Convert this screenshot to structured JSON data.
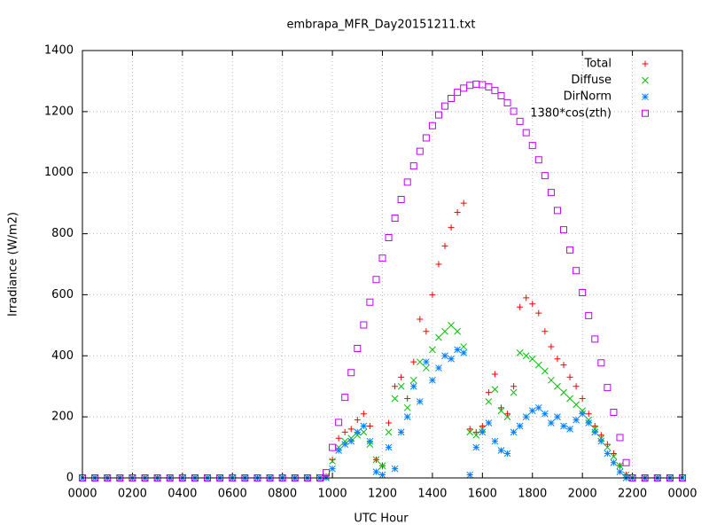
{
  "chart_data": {
    "type": "scatter",
    "title": "embrapa_MFR_Day20151211.txt",
    "xlabel": "UTC Hour",
    "ylabel": "Irradiance (W/m2)",
    "xlim": [
      0,
      24
    ],
    "ylim": [
      0,
      1400
    ],
    "xticks": [
      {
        "value": 0,
        "label": "0000"
      },
      {
        "value": 2,
        "label": "0200"
      },
      {
        "value": 4,
        "label": "0400"
      },
      {
        "value": 6,
        "label": "0600"
      },
      {
        "value": 8,
        "label": "0800"
      },
      {
        "value": 10,
        "label": "1000"
      },
      {
        "value": 12,
        "label": "1200"
      },
      {
        "value": 14,
        "label": "1400"
      },
      {
        "value": 16,
        "label": "1600"
      },
      {
        "value": 18,
        "label": "1800"
      },
      {
        "value": 20,
        "label": "2000"
      },
      {
        "value": 22,
        "label": "2200"
      },
      {
        "value": 24,
        "label": "0000"
      }
    ],
    "yticks": [
      0,
      200,
      400,
      600,
      800,
      1000,
      1200,
      1400
    ],
    "grid": true,
    "legend": "top-right",
    "x": [
      0,
      0.5,
      1,
      1.5,
      2,
      2.5,
      3,
      3.5,
      4,
      4.5,
      5,
      5.5,
      6,
      6.5,
      7,
      7.5,
      8,
      8.5,
      9,
      9.5,
      9.75,
      10,
      10.25,
      10.5,
      10.75,
      11,
      11.25,
      11.5,
      11.75,
      12,
      12.25,
      12.5,
      12.75,
      13,
      13.25,
      13.5,
      13.75,
      14,
      14.25,
      14.5,
      14.75,
      15,
      15.25,
      15.5,
      15.75,
      16,
      16.25,
      16.5,
      16.75,
      17,
      17.25,
      17.5,
      17.75,
      18,
      18.25,
      18.5,
      18.75,
      19,
      19.25,
      19.5,
      19.75,
      20,
      20.25,
      20.5,
      20.75,
      21,
      21.25,
      21.5,
      21.75,
      22,
      22.5,
      23,
      23.5,
      24
    ],
    "series": [
      {
        "name": "Total",
        "color": "#ff0000",
        "marker": "plus",
        "values": [
          0,
          0,
          0,
          0,
          0,
          0,
          0,
          0,
          0,
          0,
          0,
          0,
          0,
          0,
          0,
          0,
          0,
          0,
          0,
          0,
          5,
          60,
          130,
          150,
          160,
          190,
          210,
          170,
          60,
          40,
          180,
          300,
          330,
          260,
          380,
          520,
          480,
          600,
          700,
          760,
          820,
          870,
          900,
          160,
          150,
          170,
          280,
          340,
          230,
          210,
          300,
          560,
          590,
          570,
          540,
          480,
          430,
          390,
          370,
          330,
          300,
          260,
          210,
          170,
          140,
          110,
          80,
          40,
          10,
          0,
          0,
          0,
          0,
          0
        ]
      },
      {
        "name": "Diffuse",
        "color": "#00c000",
        "marker": "cross",
        "values": [
          0,
          0,
          0,
          0,
          0,
          0,
          0,
          0,
          0,
          0,
          0,
          0,
          0,
          0,
          0,
          0,
          0,
          0,
          0,
          0,
          5,
          55,
          100,
          120,
          130,
          140,
          150,
          110,
          60,
          40,
          150,
          260,
          300,
          230,
          320,
          380,
          360,
          420,
          460,
          480,
          500,
          480,
          430,
          150,
          140,
          160,
          250,
          290,
          220,
          200,
          280,
          410,
          400,
          390,
          370,
          350,
          320,
          300,
          280,
          260,
          240,
          220,
          190,
          160,
          130,
          100,
          70,
          40,
          10,
          0,
          0,
          0,
          0,
          0
        ]
      },
      {
        "name": "DirNorm",
        "color": "#0080ff",
        "marker": "star",
        "values": [
          0,
          0,
          0,
          0,
          0,
          0,
          0,
          0,
          0,
          0,
          0,
          0,
          0,
          0,
          0,
          0,
          0,
          0,
          0,
          0,
          0,
          30,
          90,
          110,
          120,
          150,
          170,
          120,
          20,
          10,
          100,
          30,
          150,
          200,
          300,
          250,
          380,
          320,
          360,
          400,
          390,
          420,
          410,
          10,
          100,
          150,
          180,
          120,
          90,
          80,
          150,
          170,
          200,
          220,
          230,
          210,
          180,
          200,
          170,
          160,
          190,
          210,
          180,
          150,
          120,
          80,
          50,
          20,
          0,
          0,
          0,
          0,
          0,
          0
        ]
      },
      {
        "name": "1380*cos(zth)",
        "color": "#c000ff",
        "marker": "square",
        "values": [
          0,
          0,
          0,
          0,
          0,
          0,
          0,
          0,
          0,
          0,
          0,
          0,
          0,
          0,
          0,
          0,
          0,
          0,
          0,
          0,
          17,
          100,
          182,
          264,
          345,
          424,
          501,
          576,
          650,
          720,
          787,
          851,
          912,
          969,
          1022,
          1070,
          1114,
          1154,
          1189,
          1218,
          1243,
          1263,
          1277,
          1286,
          1290,
          1288,
          1281,
          1269,
          1252,
          1229,
          1201,
          1168,
          1131,
          1089,
          1042,
          990,
          935,
          876,
          813,
          747,
          679,
          607,
          532,
          455,
          377,
          296,
          215,
          132,
          50,
          0,
          0,
          0,
          0,
          0
        ]
      }
    ]
  }
}
